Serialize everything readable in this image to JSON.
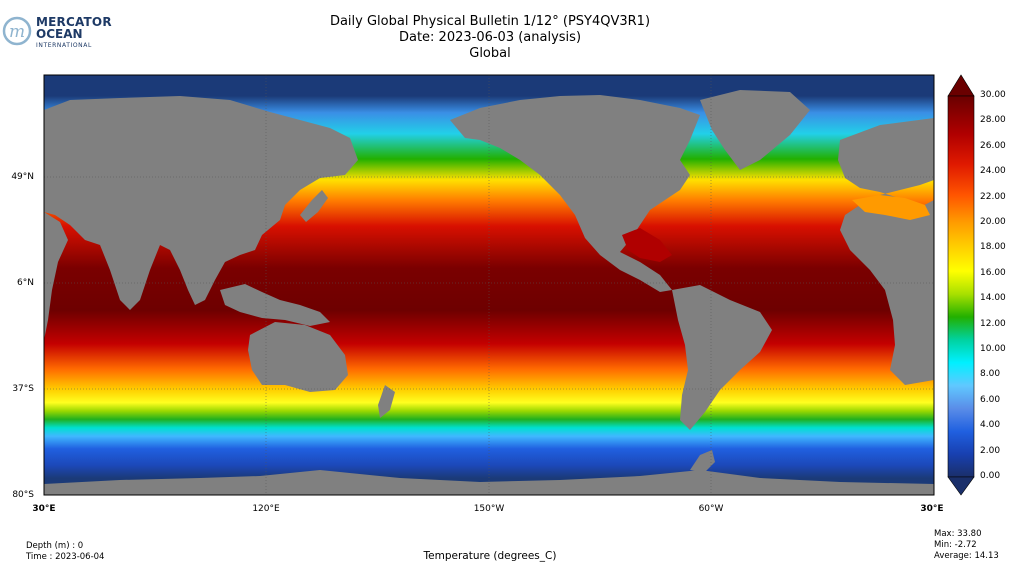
{
  "logo": {
    "line1": "MERCATOR",
    "line2": "OCEAN",
    "line3": "INTERNATIONAL"
  },
  "title": {
    "line1": "Daily Global Physical Bulletin 1/12° (PSY4QV3R1)",
    "line2": "Date: 2023-06-03 (analysis)",
    "line3": "Global"
  },
  "map": {
    "lat_labels": [
      "49°N",
      "6°N",
      "37°S",
      "80°S"
    ],
    "lon_labels": [
      "30°E",
      "120°E",
      "150°W",
      "60°W",
      "30°E"
    ],
    "colors": {
      "deep_cold": "#1b3a78",
      "land": "#808080",
      "warm": "#6e0000",
      "hot": "#c40000"
    }
  },
  "colorbar": {
    "ticks": [
      "30.00",
      "28.00",
      "26.00",
      "24.00",
      "22.00",
      "20.00",
      "18.00",
      "16.00",
      "14.00",
      "12.00",
      "10.00",
      "8.00",
      "6.00",
      "4.00",
      "2.00",
      "0.00"
    ],
    "stops": [
      "#6a0000",
      "#b00000",
      "#e01a00",
      "#ff5500",
      "#ff9a00",
      "#ffd200",
      "#ffff00",
      "#a8e000",
      "#22b000",
      "#00d2a0",
      "#00f0ff",
      "#60c8ff",
      "#5a8de8",
      "#2060e0",
      "#1840b0",
      "#1a2f6a"
    ]
  },
  "footer": {
    "depth": "Depth (m) : 0",
    "time": "Time : 2023-06-04",
    "variable": "Temperature (degrees_C)",
    "max": "Max: 33.80",
    "min": "Min: -2.72",
    "average": "Average: 14.13"
  }
}
